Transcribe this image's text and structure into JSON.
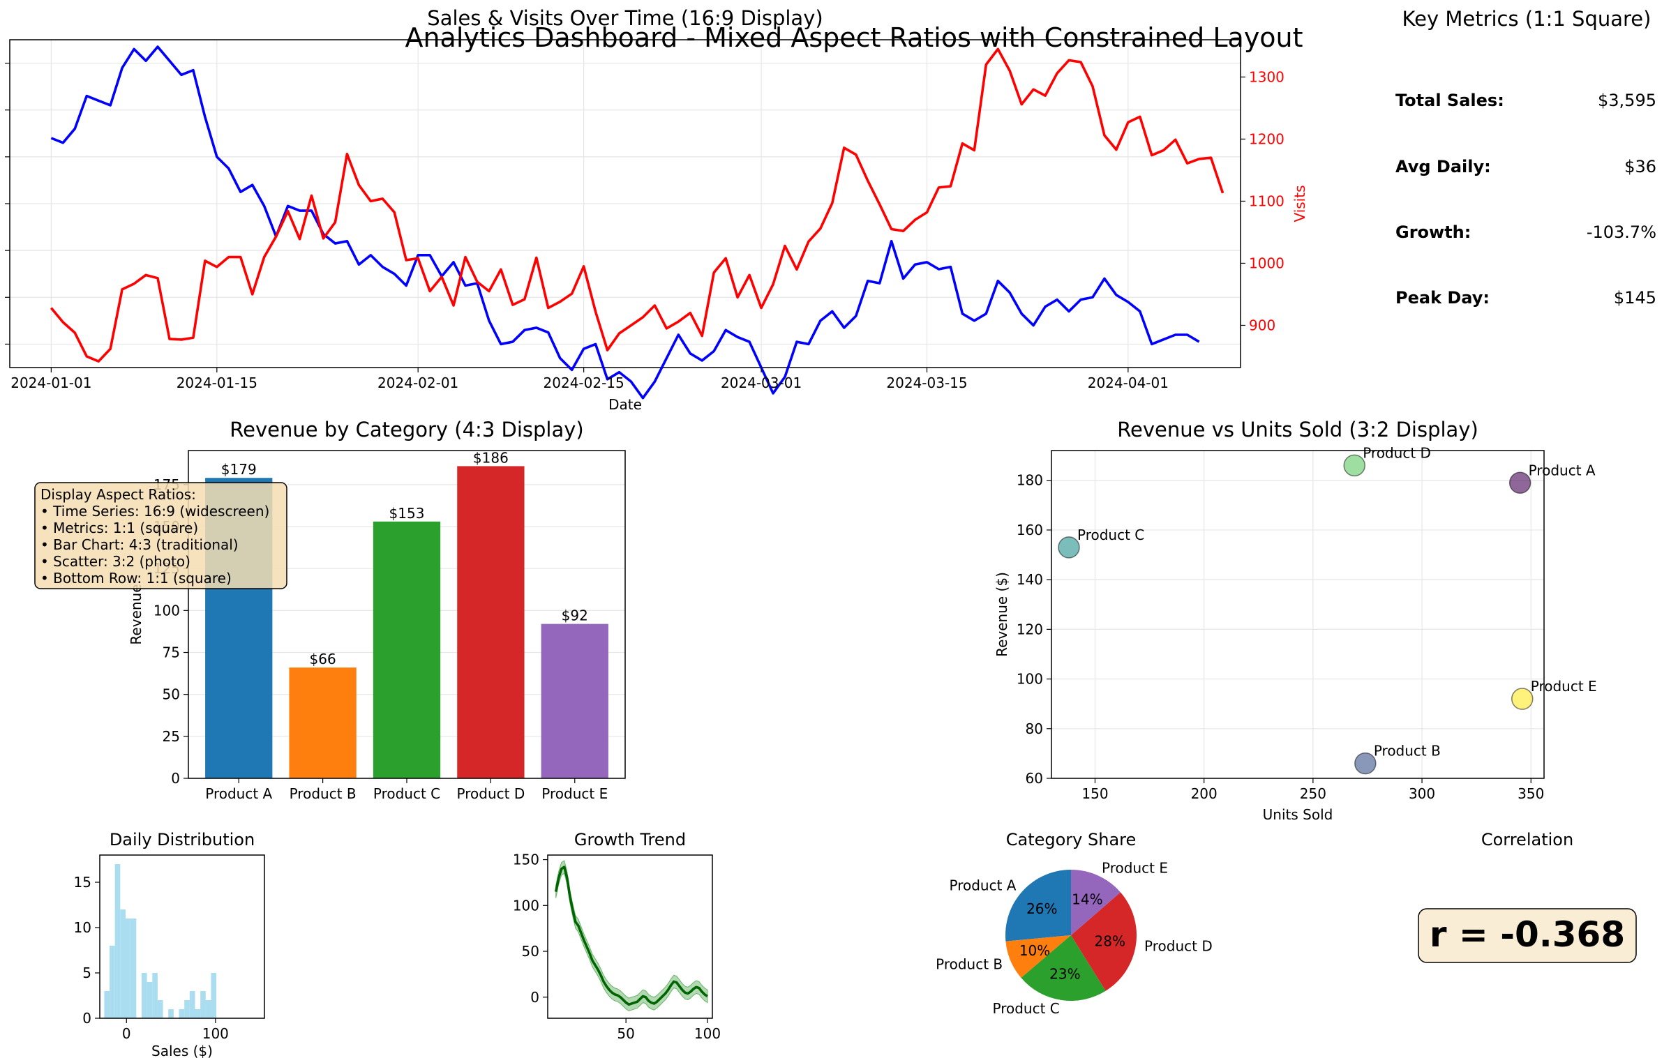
{
  "suptitle": "Analytics Dashboard - Mixed Aspect Ratios with Constrained Layout",
  "colors": {
    "sales": "#0000ff",
    "visits": "#ff0000",
    "bars": [
      "#1f77b4",
      "#ff7f0e",
      "#2ca02c",
      "#d62728",
      "#9467bd"
    ],
    "hist": "#87ceeb",
    "trend": "#008000",
    "grid": "#e6e6e6"
  },
  "timeseries": {
    "title": "Sales & Visits Over Time (16:9 Display)",
    "xlabel": "Date",
    "y2label": "Visits",
    "xticks": [
      "2024-01-01",
      "2024-01-15",
      "2024-02-01",
      "2024-02-15",
      "2024-03-01",
      "2024-03-15",
      "2024-04-01"
    ],
    "xtick_days": [
      0,
      14,
      31,
      45,
      60,
      74,
      91
    ],
    "y2ticks": [
      900,
      1000,
      1100,
      1200,
      1300
    ],
    "y1lim": [
      10,
      150
    ],
    "y2lim": [
      832,
      1360
    ]
  },
  "metrics": {
    "title": "Key Metrics (1:1 Square)",
    "items": [
      {
        "label": "Total Sales:",
        "value": "$3,595"
      },
      {
        "label": "Avg Daily:",
        "value": "$36"
      },
      {
        "label": "Growth:",
        "value": "-103.7%"
      },
      {
        "label": "Peak Day:",
        "value": "$145"
      }
    ]
  },
  "chart_data": [
    {
      "type": "line",
      "title": "Sales & Visits Over Time (16:9 Display)",
      "xlabel": "Date",
      "ylabel": "",
      "y2label": "Visits",
      "start_date": "2024-01-01",
      "series": [
        {
          "axis": "left",
          "values": [
            108,
            106,
            112,
            126,
            124,
            122,
            138,
            146,
            141,
            147,
            141,
            135,
            137,
            117,
            100,
            95,
            85,
            88,
            79,
            66,
            79,
            77,
            77,
            67,
            63,
            64,
            54,
            58,
            53,
            50,
            45,
            58,
            58,
            49,
            55,
            45,
            46,
            30,
            20,
            21,
            26,
            27,
            25,
            14,
            9,
            18,
            20,
            5,
            8,
            4,
            -3,
            4,
            14,
            24,
            16,
            13,
            17,
            26,
            23,
            21,
            10,
            -1,
            6,
            21,
            20,
            30,
            34,
            27,
            32,
            47,
            46,
            64,
            48,
            54,
            55,
            52,
            53,
            33,
            30,
            33,
            47,
            42,
            33,
            28,
            36,
            39,
            34,
            39,
            40,
            48,
            41,
            38,
            34,
            20,
            22,
            24,
            24,
            21
          ]
        },
        {
          "axis": "right",
          "values": [
            928,
            905,
            888,
            850,
            842,
            862,
            958,
            967,
            981,
            976,
            878,
            877,
            880,
            1004,
            994,
            1010,
            1010,
            950,
            1010,
            1043,
            1084,
            1039,
            1109,
            1040,
            1066,
            1176,
            1126,
            1100,
            1104,
            1082,
            1005,
            1008,
            955,
            978,
            932,
            1010,
            970,
            955,
            990,
            933,
            942,
            1009,
            928,
            938,
            951,
            995,
            922,
            860,
            887,
            900,
            913,
            932,
            895,
            906,
            920,
            883,
            985,
            1008,
            945,
            981,
            928,
            966,
            1028,
            990,
            1035,
            1056,
            1097,
            1186,
            1175,
            1133,
            1095,
            1055,
            1052,
            1070,
            1082,
            1122,
            1124,
            1193,
            1182,
            1320,
            1345,
            1310,
            1256,
            1280,
            1270,
            1306,
            1327,
            1324,
            1285,
            1206,
            1183,
            1227,
            1236,
            1174,
            1182,
            1199,
            1161,
            1168,
            1170,
            1113
          ]
        }
      ]
    },
    {
      "type": "bar",
      "title": "Revenue by Category (4:3 Display)",
      "xlabel": "",
      "ylabel": "Revenue",
      "categories": [
        "Product A",
        "Product B",
        "Product C",
        "Product D",
        "Product E"
      ],
      "values": [
        179,
        66,
        153,
        186,
        92
      ],
      "value_labels": [
        "$179",
        "$66",
        "$153",
        "$186",
        "$92"
      ],
      "yticks": [
        0,
        25,
        50,
        75,
        100,
        125,
        150,
        175
      ],
      "ylim": [
        0,
        186
      ]
    },
    {
      "type": "scatter",
      "title": "Revenue vs Units Sold (3:2 Display)",
      "xlabel": "Units Sold",
      "ylabel": "Revenue ($)",
      "points": [
        {
          "label": "Product A",
          "x": 345,
          "y": 179,
          "color": "#440154"
        },
        {
          "label": "Product B",
          "x": 274,
          "y": 66,
          "color": "#3b528b"
        },
        {
          "label": "Product C",
          "x": 138,
          "y": 153,
          "color": "#21918c"
        },
        {
          "label": "Product D",
          "x": 269,
          "y": 186,
          "color": "#5ec962"
        },
        {
          "label": "Product E",
          "x": 346,
          "y": 92,
          "color": "#fde725"
        }
      ],
      "xticks": [
        150,
        200,
        250,
        300,
        350
      ],
      "yticks": [
        60,
        80,
        100,
        120,
        140,
        160,
        180
      ],
      "xlim": [
        130,
        356
      ],
      "ylim": [
        60,
        192
      ]
    },
    {
      "type": "bar",
      "title": "Daily Distribution",
      "xlabel": "Sales ($)",
      "bin_start": -25,
      "bin_width": 6,
      "counts": [
        3,
        8,
        17,
        12,
        11,
        11,
        0,
        5,
        4,
        5,
        2,
        0,
        1,
        0,
        1,
        2,
        3,
        1,
        3,
        2,
        5
      ],
      "xticks": [
        0,
        100
      ],
      "yticks": [
        0,
        5,
        10,
        15
      ],
      "xlim": [
        -30,
        155
      ],
      "ylim": [
        0,
        18
      ]
    },
    {
      "type": "line",
      "title": "Growth Trend",
      "x_start": 7,
      "values": [
        115,
        130,
        140,
        142,
        130,
        110,
        95,
        82,
        78,
        70,
        62,
        55,
        48,
        40,
        35,
        30,
        24,
        17,
        12,
        8,
        5,
        3,
        2,
        0,
        -3,
        -6,
        -8,
        -7,
        -6,
        -5,
        -2,
        1,
        0,
        -4,
        -6,
        -7,
        -5,
        -2,
        1,
        4,
        8,
        13,
        17,
        16,
        12,
        8,
        5,
        4,
        6,
        9,
        11,
        10,
        6,
        3,
        1
      ],
      "band": 7,
      "xticks": [
        50,
        100
      ],
      "yticks": [
        0,
        50,
        100,
        150
      ],
      "xlim": [
        2,
        103
      ],
      "ylim": [
        -23,
        155
      ]
    },
    {
      "type": "pie",
      "title": "Category Share",
      "labels": [
        "Product A",
        "Product B",
        "Product C",
        "Product D",
        "Product E"
      ],
      "values": [
        179,
        66,
        153,
        186,
        92
      ],
      "pct_labels": [
        "26%",
        "10%",
        "23%",
        "28%",
        "14%"
      ]
    }
  ],
  "annotation": {
    "lines": [
      "Display Aspect Ratios:",
      "• Time Series: 16:9 (widescreen)",
      "• Metrics: 1:1 (square)",
      "• Bar Chart: 4:3 (traditional)",
      "• Scatter: 3:2 (photo)",
      "• Bottom Row: 1:1 (square)"
    ]
  },
  "correlation": {
    "title": "Correlation",
    "text": "r = -0.368"
  }
}
